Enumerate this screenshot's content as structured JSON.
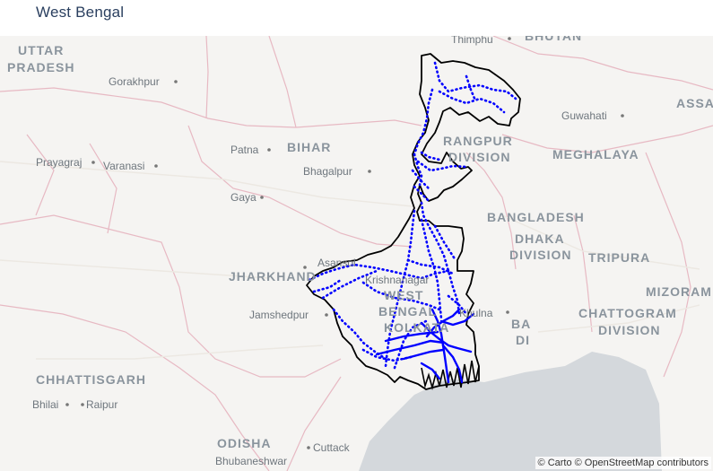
{
  "title": "West Bengal",
  "attribution": "© Carto © OpenStreetMap contributors",
  "colors": {
    "boundary": "#000000",
    "route": "#0000ff",
    "water": "#d4d8dc",
    "land": "#f5f4f2",
    "border": "#e7b9c3"
  },
  "labels": [
    {
      "id": "uttar",
      "text": "UTTAR",
      "kind": "big"
    },
    {
      "id": "pradesh",
      "text": "PRADESH",
      "kind": "big"
    },
    {
      "id": "gorakhpur",
      "text": "Gorakhpur",
      "kind": "city"
    },
    {
      "id": "bihar",
      "text": "BIHAR",
      "kind": "big"
    },
    {
      "id": "patna",
      "text": "Patna",
      "kind": "city"
    },
    {
      "id": "prayagraj",
      "text": "Prayagraj",
      "kind": "city"
    },
    {
      "id": "varanasi",
      "text": "Varanasi",
      "kind": "city"
    },
    {
      "id": "bhagalpur",
      "text": "Bhagalpur",
      "kind": "city"
    },
    {
      "id": "gaya",
      "text": "Gaya",
      "kind": "city"
    },
    {
      "id": "thimphu",
      "text": "Thimphu",
      "kind": "city"
    },
    {
      "id": "bhutan",
      "text": "BHUTAN",
      "kind": "big"
    },
    {
      "id": "guwahati",
      "text": "Guwahati",
      "kind": "city"
    },
    {
      "id": "assam",
      "text": "ASSA",
      "kind": "big"
    },
    {
      "id": "rangpur",
      "text": "RANGPUR",
      "kind": "big"
    },
    {
      "id": "division1",
      "text": "DIVISION",
      "kind": "big"
    },
    {
      "id": "meghalaya",
      "text": "MEGHALAYA",
      "kind": "big"
    },
    {
      "id": "bangladesh",
      "text": "BANGLADESH",
      "kind": "big"
    },
    {
      "id": "dhaka",
      "text": "DHAKA",
      "kind": "big"
    },
    {
      "id": "division2",
      "text": "DIVISION",
      "kind": "big"
    },
    {
      "id": "tripura",
      "text": "TRIPURA",
      "kind": "big"
    },
    {
      "id": "mizoram",
      "text": "MIZORAM",
      "kind": "big"
    },
    {
      "id": "chattogram",
      "text": "CHATTOGRAM",
      "kind": "big"
    },
    {
      "id": "division3",
      "text": "DIVISION",
      "kind": "big"
    },
    {
      "id": "jharkhand",
      "text": "JHARKHAND",
      "kind": "big"
    },
    {
      "id": "asansol",
      "text": "Asansol",
      "kind": "city"
    },
    {
      "id": "krishnanagar",
      "text": "Krishnanagar",
      "kind": "city"
    },
    {
      "id": "west",
      "text": "WEST",
      "kind": "big"
    },
    {
      "id": "bengal",
      "text": "BENGAL",
      "kind": "big"
    },
    {
      "id": "kolkata",
      "text": "KOLKATA",
      "kind": "big"
    },
    {
      "id": "khulna",
      "text": "Khulna",
      "kind": "city"
    },
    {
      "id": "ba",
      "text": "BA",
      "kind": "big"
    },
    {
      "id": "di",
      "text": "DI",
      "kind": "big"
    },
    {
      "id": "jamshedpur",
      "text": "Jamshedpur",
      "kind": "city"
    },
    {
      "id": "chhattisgarh",
      "text": "CHHATTISGARH",
      "kind": "big"
    },
    {
      "id": "bhilai",
      "text": "Bhilai",
      "kind": "city"
    },
    {
      "id": "raipur",
      "text": "Raipur",
      "kind": "city"
    },
    {
      "id": "odisha",
      "text": "ODISHA",
      "kind": "big"
    },
    {
      "id": "cuttack",
      "text": "Cuttack",
      "kind": "city"
    },
    {
      "id": "bhubaneshwar",
      "text": "Bhubaneshwar",
      "kind": "city"
    }
  ]
}
